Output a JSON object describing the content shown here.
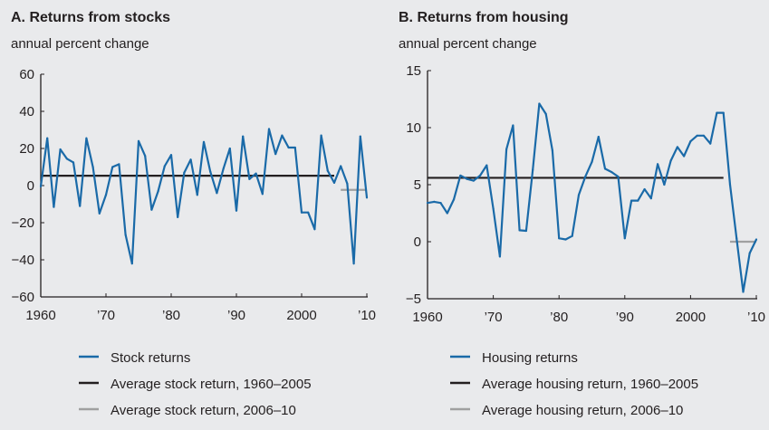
{
  "chart_data": [
    {
      "type": "line",
      "title": "A. Returns from stocks",
      "ylabel": "annual percent change",
      "xlabel": "",
      "x": [
        1960,
        1961,
        1962,
        1963,
        1964,
        1965,
        1966,
        1967,
        1968,
        1969,
        1970,
        1971,
        1972,
        1973,
        1974,
        1975,
        1976,
        1977,
        1978,
        1979,
        1980,
        1981,
        1982,
        1983,
        1984,
        1985,
        1986,
        1987,
        1988,
        1989,
        1990,
        1991,
        1992,
        1993,
        1994,
        1995,
        1996,
        1997,
        1998,
        1999,
        2000,
        2001,
        2002,
        2003,
        2004,
        2005,
        2006,
        2007,
        2008,
        2009,
        2010
      ],
      "xlim": [
        1960,
        2010
      ],
      "ylim": [
        -60,
        60
      ],
      "yticks": [
        60,
        40,
        20,
        0,
        -20,
        -40,
        -60
      ],
      "ytick_labels": [
        "60",
        "40",
        "20",
        "0",
        "−20",
        "−40",
        "−60"
      ],
      "xticks": [
        1960,
        1970,
        1980,
        1990,
        2000,
        2010
      ],
      "xtick_labels": [
        "1960",
        "’70",
        "’80",
        "’90",
        "2000",
        "’10"
      ],
      "grid": false,
      "legend_placement": "bottom",
      "series": [
        {
          "name": "Stock returns",
          "color": "#1a6aa8",
          "values": [
            -0.5,
            25.5,
            -11.5,
            19.5,
            14.5,
            12.5,
            -11,
            25.5,
            10,
            -15,
            -5,
            10,
            11.5,
            -26.5,
            -42,
            24,
            16,
            -13,
            -3,
            10.5,
            16.5,
            -17,
            7,
            14,
            -5,
            23.5,
            7.5,
            -4,
            9,
            20,
            -13.5,
            26.5,
            3.5,
            6.5,
            -4.5,
            30.5,
            17,
            27,
            20.5,
            20.5,
            -14.5,
            -14.5,
            -23.5,
            27,
            8,
            1.5,
            10.5,
            1,
            -42,
            26.5,
            -6.5
          ]
        },
        {
          "name": "Average stock return, 1960–2005",
          "color": "#231f20",
          "x_range": [
            1960,
            2005
          ],
          "value": 5.3
        },
        {
          "name": "Average stock return, 2006–10",
          "color": "#a0a0a0",
          "x_range": [
            2006,
            2010
          ],
          "value": -2.3
        }
      ]
    },
    {
      "type": "line",
      "title": "B. Returns from housing",
      "ylabel": "annual percent change",
      "xlabel": "",
      "x": [
        1960,
        1961,
        1962,
        1963,
        1964,
        1965,
        1966,
        1967,
        1968,
        1969,
        1970,
        1971,
        1972,
        1973,
        1974,
        1975,
        1976,
        1977,
        1978,
        1979,
        1980,
        1981,
        1982,
        1983,
        1984,
        1985,
        1986,
        1987,
        1988,
        1989,
        1990,
        1991,
        1992,
        1993,
        1994,
        1995,
        1996,
        1997,
        1998,
        1999,
        2000,
        2001,
        2002,
        2003,
        2004,
        2005,
        2006,
        2007,
        2008,
        2009,
        2010
      ],
      "xlim": [
        1960,
        2010
      ],
      "ylim": [
        -5,
        15
      ],
      "yticks": [
        15,
        10,
        5,
        0,
        -5
      ],
      "ytick_labels": [
        "15",
        "10",
        "5",
        "0",
        "−5"
      ],
      "xticks": [
        1960,
        1970,
        1980,
        1990,
        2000,
        2010
      ],
      "xtick_labels": [
        "1960",
        "’70",
        "’80",
        "’90",
        "2000",
        "’10"
      ],
      "grid": false,
      "legend_placement": "bottom",
      "series": [
        {
          "name": "Housing returns",
          "color": "#1a6aa8",
          "values": [
            3.4,
            3.5,
            3.4,
            2.5,
            3.7,
            5.8,
            5.5,
            5.35,
            5.8,
            6.7,
            2.9,
            -1.3,
            8.1,
            10.2,
            1.0,
            0.95,
            6.3,
            12.1,
            11.2,
            8.0,
            0.3,
            0.2,
            0.5,
            4.1,
            5.7,
            7.0,
            9.2,
            6.4,
            6.1,
            5.7,
            0.3,
            3.6,
            3.6,
            4.6,
            3.8,
            6.8,
            5.0,
            7.1,
            8.3,
            7.5,
            8.8,
            9.3,
            9.3,
            8.6,
            11.3,
            11.3,
            5.0,
            0.3,
            -4.4,
            -1.0,
            0.2
          ]
        },
        {
          "name": "Average housing return, 1960–2005",
          "color": "#231f20",
          "x_range": [
            1960,
            2005
          ],
          "value": 5.6
        },
        {
          "name": "Average housing return, 2006–10",
          "color": "#a0a0a0",
          "x_range": [
            2006,
            2010
          ],
          "value": 0
        }
      ]
    }
  ]
}
